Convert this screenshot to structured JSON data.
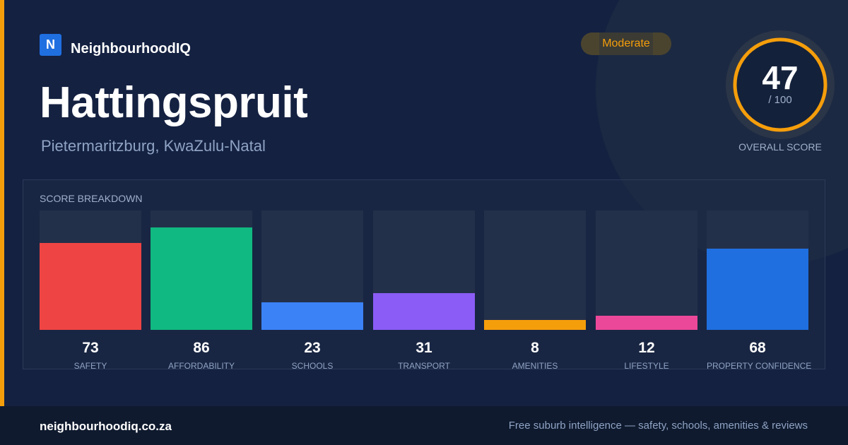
{
  "brand": {
    "logo_letter": "N",
    "name": "NeighbourhoodIQ"
  },
  "suburb": {
    "name": "Hattingspruit",
    "location": "Pietermaritzburg, KwaZulu-Natal"
  },
  "rating_badge": "Moderate",
  "overall": {
    "score": "47",
    "max": "/ 100",
    "score_fraction": 0.47,
    "label": "OVERALL SCORE"
  },
  "breakdown": {
    "title": "SCORE BREAKDOWN",
    "items": [
      {
        "label": "SAFETY",
        "value": "73",
        "fraction": 0.73,
        "color": "#ef4444"
      },
      {
        "label": "AFFORDABILITY",
        "value": "86",
        "fraction": 0.86,
        "color": "#10b981"
      },
      {
        "label": "SCHOOLS",
        "value": "23",
        "fraction": 0.23,
        "color": "#3b82f6"
      },
      {
        "label": "TRANSPORT",
        "value": "31",
        "fraction": 0.31,
        "color": "#8b5cf6"
      },
      {
        "label": "AMENITIES",
        "value": "8",
        "fraction": 0.08,
        "color": "#f59e0b"
      },
      {
        "label": "LIFESTYLE",
        "value": "12",
        "fraction": 0.12,
        "color": "#ec4899"
      },
      {
        "label": "PROPERTY CONFIDENCE",
        "value": "68",
        "fraction": 0.68,
        "color": "#1f6fe0"
      }
    ]
  },
  "colors": {
    "accent": "#f59e0b",
    "background": "#142141",
    "footer": "#0f1a2e"
  },
  "footer": {
    "url": "neighbourhoodiq.co.za",
    "tagline": "Free suburb intelligence — safety, schools, amenities & reviews"
  }
}
